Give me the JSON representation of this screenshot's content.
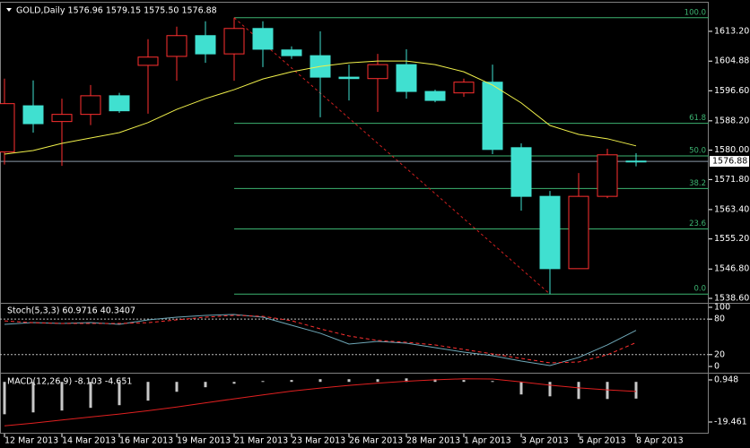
{
  "chart_data": [
    {
      "type": "candlestick",
      "title": "GOLD,Daily  1576.96 1579.15 1575.50 1576.88",
      "categories": [
        "12 Mar 2013",
        null,
        "14 Mar 2013",
        null,
        "16 Mar 2013",
        null,
        "19 Mar 2013",
        null,
        "21 Mar 2013",
        null,
        "23 Mar 2013",
        null,
        "26 Mar 2013",
        null,
        "28 Mar 2013",
        null,
        "1 Apr 2013",
        null,
        "3 Apr 2013",
        null,
        "5 Apr 2013",
        null,
        "8 Apr 2013"
      ],
      "open": [
        1579.5,
        1592.4,
        1588.0,
        1590.0,
        1595.2,
        1603.7,
        1606.2,
        1612.0,
        1606.9,
        1614.0,
        1608.0,
        1606.4,
        1600.4,
        1600.0,
        1603.9,
        1596.4,
        1596.0,
        1599.0,
        1580.7,
        1567.1,
        1546.9,
        1567.1,
        1576.96
      ],
      "high": [
        1600.0,
        1599.5,
        1594.4,
        1598.2,
        1596.0,
        1611.0,
        1614.5,
        1616.0,
        1617.0,
        1616.0,
        1609.0,
        1613.2,
        1603.9,
        1606.9,
        1608.2,
        1596.9,
        1600.0,
        1603.9,
        1581.9,
        1568.6,
        1573.6,
        1580.4,
        1579.15
      ],
      "low": [
        1576.0,
        1584.9,
        1575.6,
        1587.0,
        1590.4,
        1590.2,
        1599.4,
        1604.4,
        1599.4,
        1603.2,
        1605.5,
        1589.2,
        1593.9,
        1590.7,
        1594.4,
        1593.4,
        1594.9,
        1578.9,
        1563.1,
        1539.8,
        1546.9,
        1566.6,
        1575.5
      ],
      "close": [
        1593.0,
        1587.4,
        1590.0,
        1595.2,
        1591.0,
        1606.0,
        1612.0,
        1606.9,
        1614.0,
        1608.2,
        1606.4,
        1600.4,
        1600.0,
        1603.9,
        1596.4,
        1593.9,
        1599.0,
        1580.2,
        1567.1,
        1546.9,
        1567.1,
        1578.7,
        1576.88
      ],
      "up_color": "#ff3030",
      "down_color": "#40e0d0",
      "ylim": [
        1537.35,
        1620.7
      ],
      "yticks": [
        {
          "value": 1613.2,
          "label": "1613.20"
        },
        1604.88,
        {
          "value": 1596.6,
          "label": "1596.60"
        },
        {
          "value": 1588.2,
          "label": "1588.20"
        },
        {
          "value": 1580.0,
          "label": "1580.00"
        },
        {
          "value": 1571.8,
          "label": "1571.80"
        },
        {
          "value": 1563.4,
          "label": "1563.40"
        },
        {
          "value": 1555.2,
          "label": "1555.20"
        },
        {
          "value": 1546.8,
          "label": "1546.80"
        },
        {
          "value": 1538.6,
          "label": "1538.60"
        }
      ],
      "last_price": 1576.88,
      "last_price_color": "#8a9aa8",
      "moving_average": {
        "color": "#f0f04a",
        "values": [
          1578.9,
          1579.9,
          1581.9,
          1583.4,
          1584.9,
          1587.7,
          1591.4,
          1594.4,
          1596.9,
          1599.9,
          1601.9,
          1603.4,
          1604.4,
          1604.9,
          1604.9,
          1603.9,
          1601.9,
          1598.2,
          1593.2,
          1586.9,
          1584.4,
          1583.2,
          1581.2
        ]
      },
      "fibonacci": {
        "color": "#3cb371",
        "trend_color": "#d02020",
        "anchors": [
          8,
          19
        ],
        "levels": [
          {
            "value": 100,
            "label": "100.0"
          },
          {
            "value": 61.8,
            "label": "61.8"
          },
          {
            "value": 50,
            "label": "50.0"
          },
          {
            "value": 38.2,
            "label": "38.2"
          },
          {
            "value": 23.6,
            "label": "23.6"
          },
          {
            "value": 0,
            "label": "0.0"
          }
        ],
        "prices": [
          1617.0,
          1587.5,
          1578.4,
          1569.3,
          1558.0,
          1539.8
        ]
      }
    },
    {
      "type": "line",
      "title": "Stoch(5,3,3) 60.9716 40.3407",
      "series": [
        {
          "color": "#6fa8b8",
          "dash": false,
          "values": [
            71.2,
            74.2,
            72.7,
            74.2,
            71.2,
            78.8,
            83.3,
            86.4,
            87.9,
            83.3,
            69.7,
            56.1,
            37.9,
            42.4,
            39.4,
            31.8,
            24.2,
            18.2,
            9.1,
            1.5,
            15.2,
            36.4,
            60.9716
          ]
        },
        {
          "color": "#ff3030",
          "dash": true,
          "values": [
            77.0,
            74.0,
            72.7,
            72.7,
            72.7,
            74.0,
            78.8,
            83.3,
            86.4,
            84.8,
            77.3,
            63.6,
            51.5,
            43.9,
            40.9,
            36.4,
            28.8,
            21.2,
            13.6,
            6.1,
            7.6,
            19.7,
            40.3407
          ]
        }
      ],
      "ylim": [
        -9.1,
        104.5
      ],
      "yticks": [
        100,
        80,
        20,
        0
      ],
      "levels": [
        80,
        20
      ],
      "level_color": "#c0c0c0"
    },
    {
      "type": "bar",
      "title": "MACD(12,26,9) -8.103 -4.651",
      "values": [
        -15.7,
        -14.8,
        -13.9,
        -12.6,
        -11.3,
        -9.1,
        -4.8,
        -2.6,
        -0.9,
        0.4,
        0.9,
        1.3,
        1.3,
        1.3,
        1.7,
        1.3,
        0.9,
        0.4,
        -6.1,
        -7.0,
        -8.3,
        -8.3,
        -8.103
      ],
      "color": "#c8c8c8",
      "signal": {
        "color": "#e02020",
        "values": [
          -21.3,
          -20.0,
          -18.5,
          -17.0,
          -15.6,
          -14.0,
          -12.2,
          -10.2,
          -8.2,
          -6.3,
          -4.5,
          -3.0,
          -1.7,
          -0.6,
          0.3,
          1.0,
          1.5,
          1.4,
          0.0,
          -1.6,
          -2.9,
          -3.9,
          -4.651
        ]
      },
      "ylim": [
        -25.98,
        3.56
      ],
      "yticks": [
        0.948,
        -19.461
      ]
    }
  ]
}
